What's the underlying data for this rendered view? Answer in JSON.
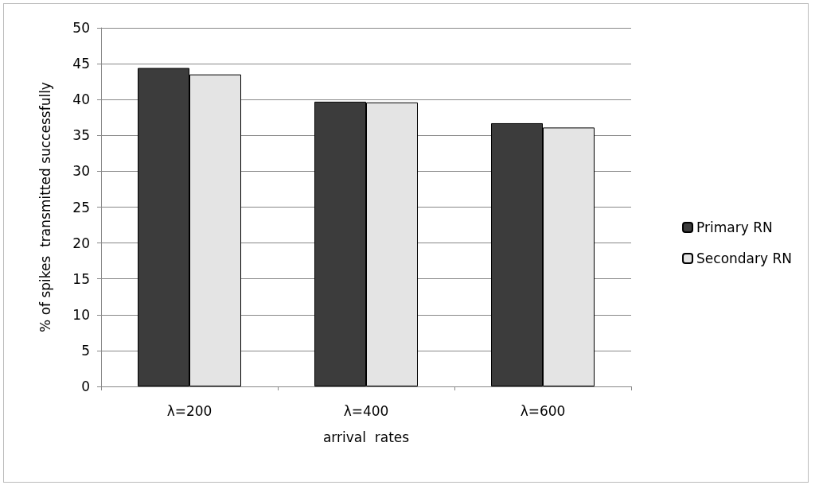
{
  "chart_data": {
    "type": "bar",
    "xlabel": "arrival  rates",
    "ylabel": "% of spikes  transmitted successfully",
    "categories": [
      "λ=200",
      "λ=400",
      "λ=600"
    ],
    "series": [
      {
        "name": "Primary RN",
        "color": "#3c3c3c",
        "values": [
          44.4,
          39.7,
          36.7
        ]
      },
      {
        "name": "Secondary RN",
        "color": "#e4e4e4",
        "values": [
          43.5,
          39.6,
          36.1
        ]
      }
    ],
    "ylim": [
      0,
      50
    ],
    "yticks": [
      0,
      5,
      10,
      15,
      20,
      25,
      30,
      35,
      40,
      45,
      50
    ],
    "grid": "y",
    "legend": "right"
  }
}
